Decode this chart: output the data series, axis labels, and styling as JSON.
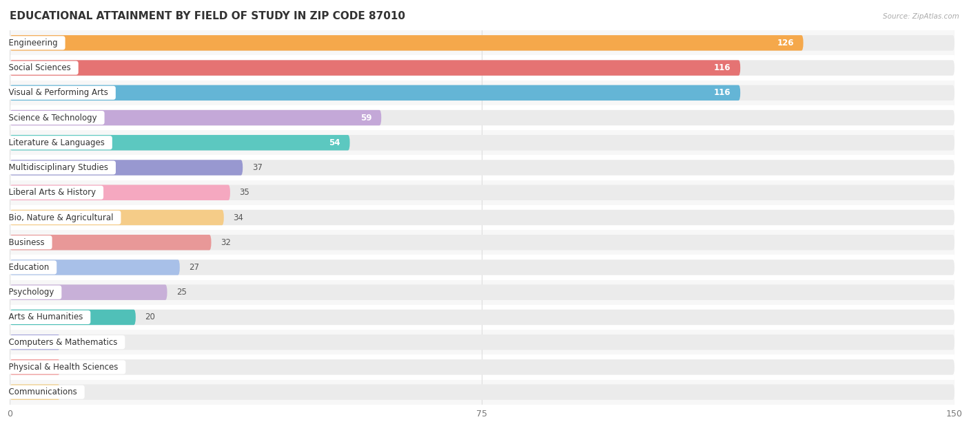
{
  "title": "EDUCATIONAL ATTAINMENT BY FIELD OF STUDY IN ZIP CODE 87010",
  "source": "Source: ZipAtlas.com",
  "categories": [
    "Engineering",
    "Social Sciences",
    "Visual & Performing Arts",
    "Science & Technology",
    "Literature & Languages",
    "Multidisciplinary Studies",
    "Liberal Arts & History",
    "Bio, Nature & Agricultural",
    "Business",
    "Education",
    "Psychology",
    "Arts & Humanities",
    "Computers & Mathematics",
    "Physical & Health Sciences",
    "Communications"
  ],
  "values": [
    126,
    116,
    116,
    59,
    54,
    37,
    35,
    34,
    32,
    27,
    25,
    20,
    0,
    0,
    0
  ],
  "colors": [
    "#F5A84B",
    "#E57373",
    "#64B5D6",
    "#C4A8D8",
    "#5CC8C0",
    "#9898D0",
    "#F5A8C0",
    "#F5CC88",
    "#E89898",
    "#A8C0E8",
    "#C8B0D8",
    "#50C0B8",
    "#A8A8DC",
    "#F09090",
    "#F0CC80"
  ],
  "xlim": [
    0,
    150
  ],
  "xticks": [
    0,
    75,
    150
  ],
  "bar_height": 0.62,
  "track_color": "#ebebeb",
  "background_color": "#ffffff",
  "row_alt_color": "#f7f7f7",
  "grid_color": "#dddddd",
  "title_fontsize": 11,
  "tick_fontsize": 9,
  "label_fontsize": 8.5,
  "value_fontsize": 8.5,
  "zero_bar_width": 8
}
